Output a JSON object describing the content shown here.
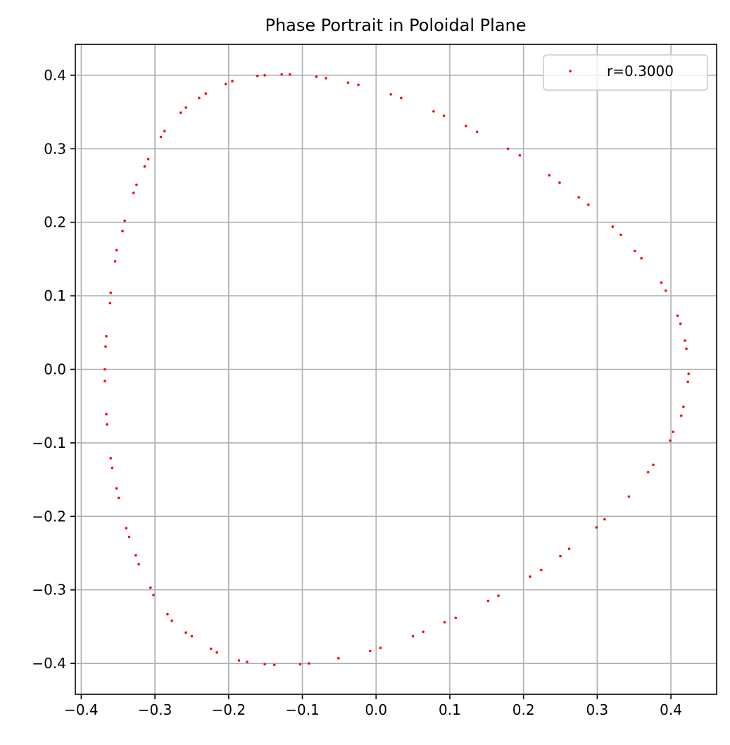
{
  "chart_data": {
    "type": "scatter",
    "title": "Phase Portrait in Poloidal Plane",
    "xlabel": "",
    "ylabel": "",
    "xlim": [
      -0.408,
      0.462
    ],
    "ylim": [
      -0.442,
      0.442
    ],
    "x_ticks": [
      -0.4,
      -0.3,
      -0.2,
      -0.1,
      0.0,
      0.1,
      0.2,
      0.3,
      0.4
    ],
    "x_tick_labels": [
      "−0.4",
      "−0.3",
      "−0.2",
      "−0.1",
      "0.0",
      "0.1",
      "0.2",
      "0.3",
      "0.4"
    ],
    "y_ticks": [
      -0.4,
      -0.3,
      -0.2,
      -0.1,
      0.0,
      0.1,
      0.2,
      0.3,
      0.4
    ],
    "y_tick_labels": [
      "−0.4",
      "−0.3",
      "−0.2",
      "−0.1",
      "0.0",
      "0.1",
      "0.2",
      "0.3",
      "0.4"
    ],
    "grid": true,
    "legend_position": "top-right",
    "series": [
      {
        "name": "r=0.3000",
        "color": "#ff0000",
        "marker": "point",
        "points": [
          [
            -0.161,
            0.399
          ],
          [
            -0.151,
            0.4
          ],
          [
            -0.128,
            0.401
          ],
          [
            -0.117,
            0.401
          ],
          [
            -0.081,
            0.398
          ],
          [
            -0.068,
            0.396
          ],
          [
            -0.038,
            0.39
          ],
          [
            -0.024,
            0.387
          ],
          [
            0.02,
            0.374
          ],
          [
            0.034,
            0.369
          ],
          [
            0.078,
            0.351
          ],
          [
            0.092,
            0.345
          ],
          [
            0.122,
            0.331
          ],
          [
            0.137,
            0.323
          ],
          [
            0.179,
            0.3
          ],
          [
            0.195,
            0.291
          ],
          [
            0.235,
            0.264
          ],
          [
            0.249,
            0.254
          ],
          [
            0.275,
            0.234
          ],
          [
            0.288,
            0.224
          ],
          [
            0.321,
            0.194
          ],
          [
            0.332,
            0.183
          ],
          [
            0.351,
            0.161
          ],
          [
            0.36,
            0.151
          ],
          [
            0.387,
            0.118
          ],
          [
            0.393,
            0.107
          ],
          [
            0.409,
            0.073
          ],
          [
            0.413,
            0.062
          ],
          [
            0.419,
            0.039
          ],
          [
            0.421,
            0.028
          ],
          [
            0.424,
            -0.006
          ],
          [
            0.423,
            -0.017
          ],
          [
            0.417,
            -0.051
          ],
          [
            0.414,
            -0.063
          ],
          [
            0.403,
            -0.085
          ],
          [
            0.399,
            -0.097
          ],
          [
            0.376,
            -0.13
          ],
          [
            0.369,
            -0.14
          ],
          [
            0.343,
            -0.173
          ],
          [
            0.31,
            -0.204
          ],
          [
            0.299,
            -0.215
          ],
          [
            0.262,
            -0.244
          ],
          [
            0.25,
            -0.254
          ],
          [
            0.224,
            -0.273
          ],
          [
            0.209,
            -0.282
          ],
          [
            0.166,
            -0.308
          ],
          [
            0.152,
            -0.315
          ],
          [
            0.108,
            -0.338
          ],
          [
            0.093,
            -0.344
          ],
          [
            0.064,
            -0.357
          ],
          [
            0.05,
            -0.363
          ],
          [
            0.006,
            -0.379
          ],
          [
            -0.008,
            -0.383
          ],
          [
            -0.051,
            -0.393
          ],
          [
            -0.091,
            -0.4
          ],
          [
            -0.103,
            -0.401
          ],
          [
            -0.138,
            -0.402
          ],
          [
            -0.151,
            -0.401
          ],
          [
            -0.175,
            -0.398
          ],
          [
            -0.186,
            -0.396
          ],
          [
            -0.216,
            -0.385
          ],
          [
            -0.224,
            -0.38
          ],
          [
            -0.25,
            -0.363
          ],
          [
            -0.258,
            -0.358
          ],
          [
            -0.277,
            -0.342
          ],
          [
            -0.283,
            -0.333
          ],
          [
            -0.302,
            -0.307
          ],
          [
            -0.306,
            -0.297
          ],
          [
            -0.322,
            -0.265
          ],
          [
            -0.326,
            -0.253
          ],
          [
            -0.335,
            -0.228
          ],
          [
            -0.339,
            -0.216
          ],
          [
            -0.349,
            -0.175
          ],
          [
            -0.352,
            -0.162
          ],
          [
            -0.358,
            -0.134
          ],
          [
            -0.36,
            -0.121
          ],
          [
            -0.365,
            -0.075
          ],
          [
            -0.366,
            -0.061
          ],
          [
            -0.368,
            -0.016
          ],
          [
            -0.368,
            0.0
          ],
          [
            -0.367,
            0.031
          ],
          [
            -0.366,
            0.045
          ],
          [
            -0.361,
            0.09
          ],
          [
            -0.36,
            0.104
          ],
          [
            -0.354,
            0.147
          ],
          [
            -0.352,
            0.162
          ],
          [
            -0.344,
            0.188
          ],
          [
            -0.341,
            0.202
          ],
          [
            -0.329,
            0.24
          ],
          [
            -0.325,
            0.251
          ],
          [
            -0.314,
            0.276
          ],
          [
            -0.309,
            0.286
          ],
          [
            -0.292,
            0.316
          ],
          [
            -0.287,
            0.324
          ],
          [
            -0.265,
            0.349
          ],
          [
            -0.258,
            0.356
          ],
          [
            -0.24,
            0.369
          ],
          [
            -0.231,
            0.375
          ],
          [
            -0.204,
            0.388
          ],
          [
            -0.195,
            0.392
          ]
        ]
      }
    ]
  }
}
